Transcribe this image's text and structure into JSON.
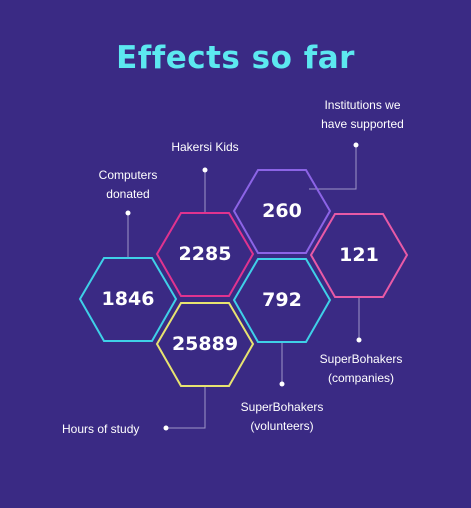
{
  "title": "Effects so far",
  "colors": {
    "background": "#3a2a84",
    "title": "#5ce8f0",
    "cyan": "#3fd0e8",
    "magenta": "#e0338f",
    "purple": "#8c64e6",
    "pink": "#e85aa6",
    "yellow": "#e8e370",
    "connector": "#9f95c8"
  },
  "stats": [
    {
      "id": "computers",
      "value": "1846",
      "label_lines": [
        "Computers",
        "donated"
      ]
    },
    {
      "id": "kids",
      "value": "2285",
      "label_lines": [
        "Hakersi Kids"
      ]
    },
    {
      "id": "institutions",
      "value": "260",
      "label_lines": [
        "Institutions we",
        "have supported"
      ]
    },
    {
      "id": "companies",
      "value": "121",
      "label_lines": [
        "SuperBohakers",
        "(companies)"
      ]
    },
    {
      "id": "volunteers",
      "value": "792",
      "label_lines": [
        "SuperBohakers",
        "(volunteers)"
      ]
    },
    {
      "id": "hours",
      "value": "25889",
      "label_lines": [
        "Hours of study"
      ]
    }
  ]
}
